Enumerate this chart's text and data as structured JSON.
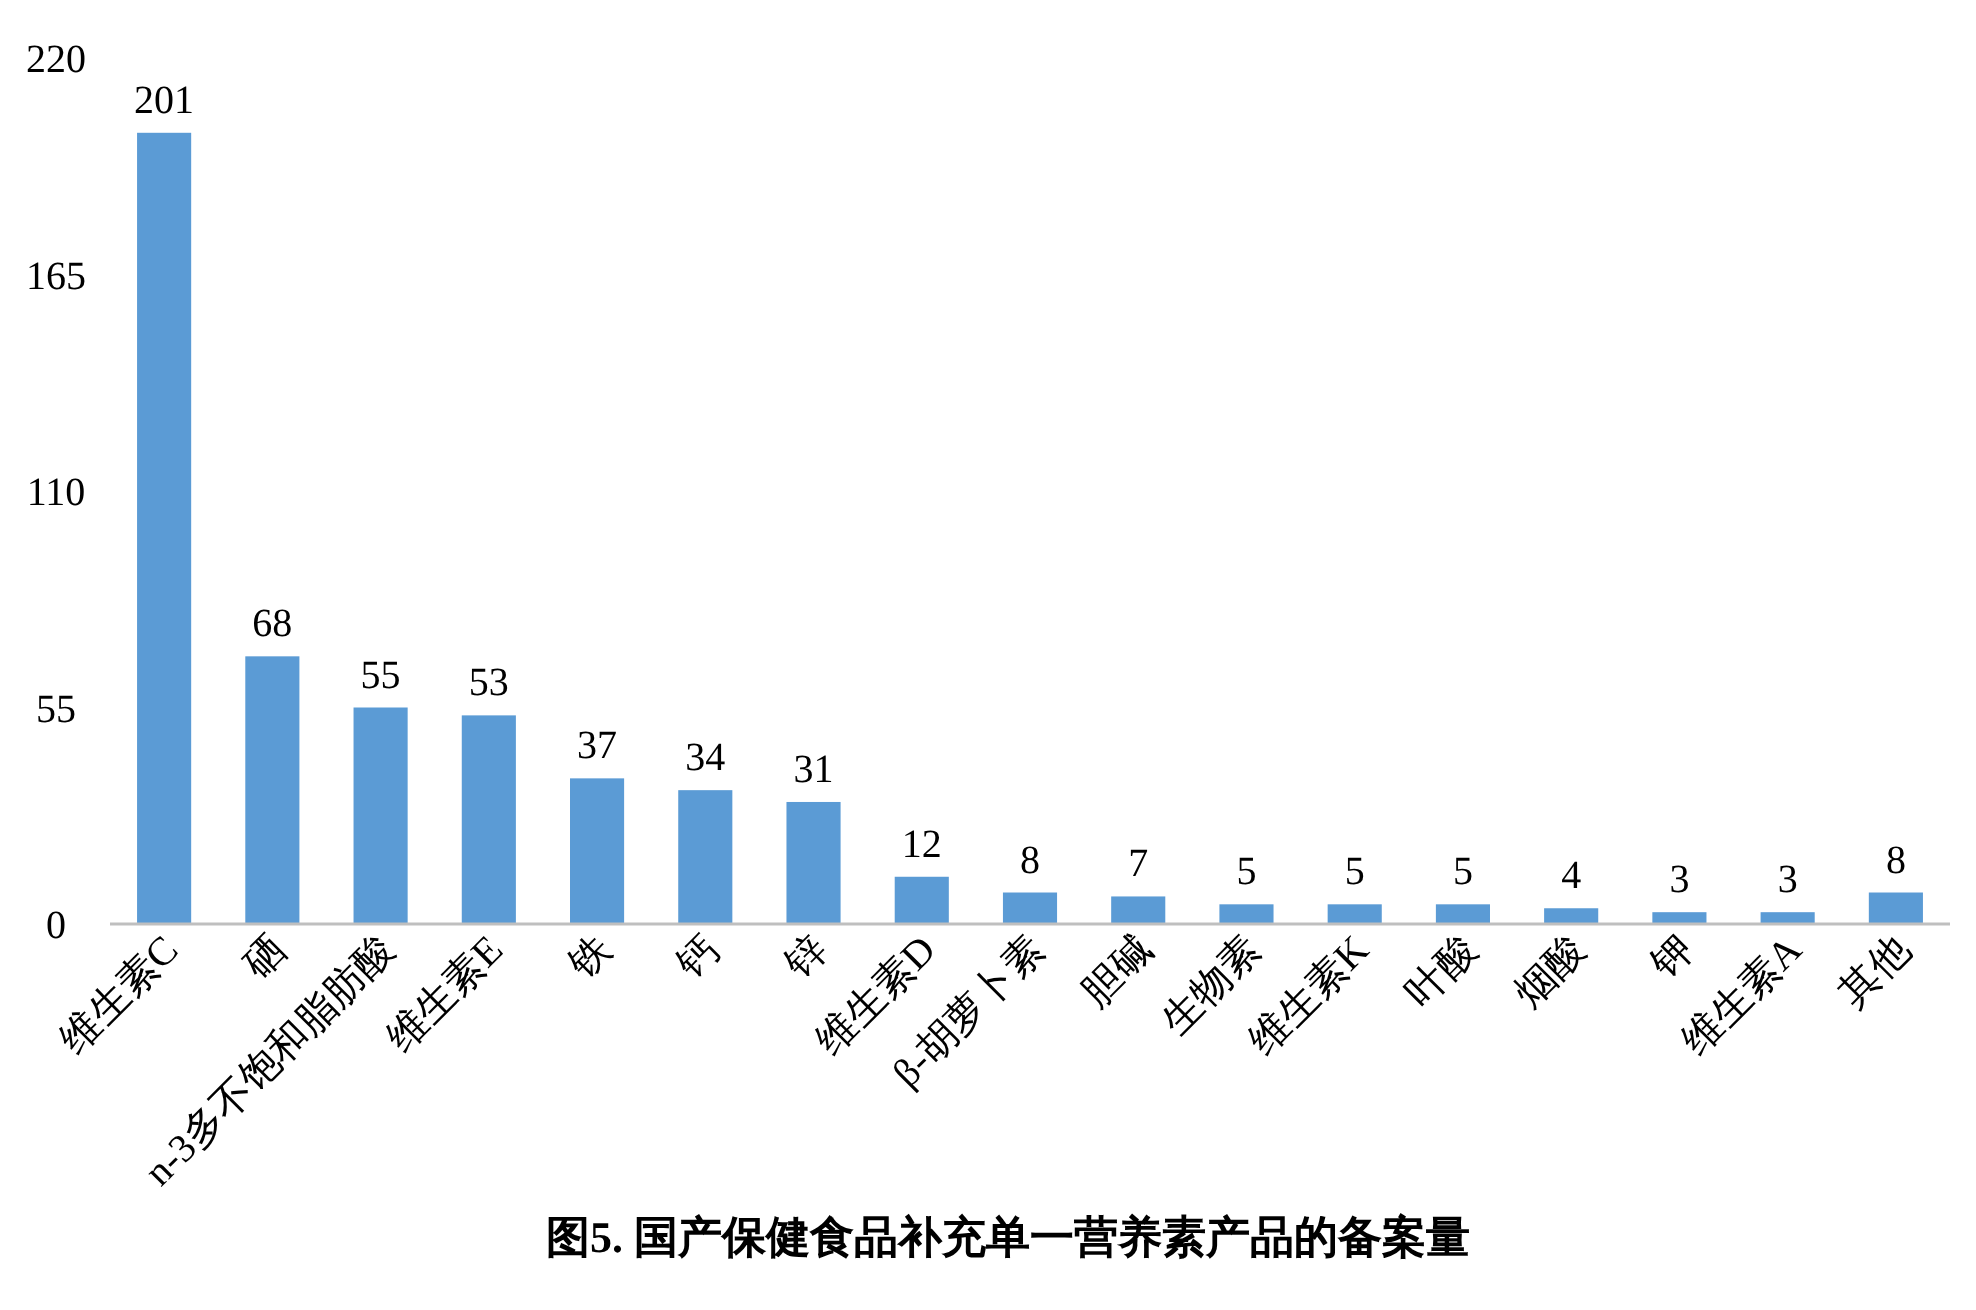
{
  "chart_data": {
    "type": "bar",
    "title": "图5. 国产保健食品补充单一营养素产品的备案量",
    "categories": [
      "维生素C",
      "硒",
      "n-3多不饱和脂肪酸",
      "维生素E",
      "铁",
      "钙",
      "锌",
      "维生素D",
      "β-胡萝卜素",
      "胆碱",
      "生物素",
      "维生素K",
      "叶酸",
      "烟酸",
      "钾",
      "维生素A",
      "其他"
    ],
    "values": [
      201,
      68,
      55,
      53,
      37,
      34,
      31,
      12,
      8,
      7,
      5,
      5,
      5,
      4,
      3,
      3,
      8
    ],
    "color": "#5b9bd5",
    "ylim": [
      0,
      220
    ],
    "yticks": [
      0,
      55,
      110,
      165,
      220
    ],
    "data_labels": true,
    "grid": false
  }
}
